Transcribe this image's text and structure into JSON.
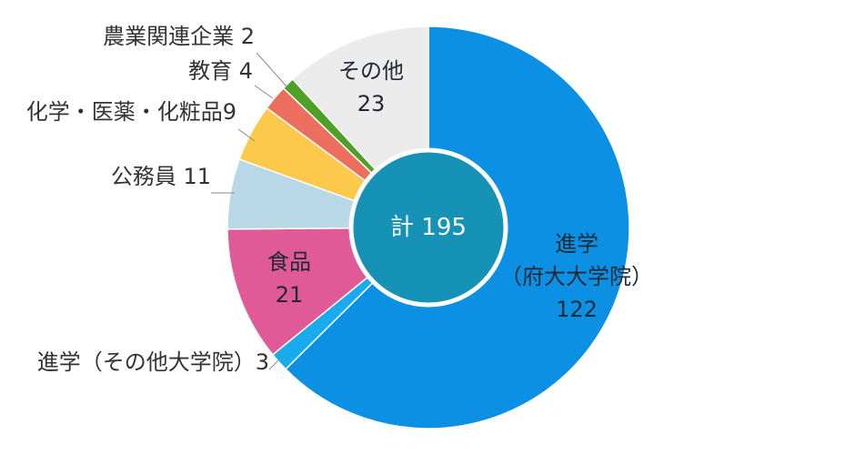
{
  "chart_data": {
    "type": "pie",
    "donut": true,
    "total_label": "計 195",
    "slices": [
      {
        "name": "進学（府大大学院）",
        "label_lines": [
          "進学",
          "（府大大学院）",
          "122"
        ],
        "value": 122,
        "color": "#0b90e3"
      },
      {
        "name": "進学（その他大学院）",
        "label_lines": [
          "進学（その他大学院）3"
        ],
        "value": 3,
        "color": "#18abee"
      },
      {
        "name": "食品",
        "label_lines": [
          "食品",
          "21"
        ],
        "value": 21,
        "color": "#df5a96"
      },
      {
        "name": "公務員",
        "label_lines": [
          "公務員 11"
        ],
        "value": 11,
        "color": "#b8d8e8"
      },
      {
        "name": "化学・医薬・化粧品",
        "label_lines": [
          "化学・医薬・化粧品9"
        ],
        "value": 9,
        "color": "#fdc94c"
      },
      {
        "name": "教育",
        "label_lines": [
          "教育 4"
        ],
        "value": 4,
        "color": "#ec6e5e"
      },
      {
        "name": "農業関連企業",
        "label_lines": [
          "農業関連企業 2"
        ],
        "value": 2,
        "color": "#4ea027"
      },
      {
        "name": "その他",
        "label_lines": [
          "その他",
          "23"
        ],
        "value": 23,
        "color": "#ebebeb"
      }
    ],
    "center_color": "#1592b5",
    "legend": "none"
  }
}
